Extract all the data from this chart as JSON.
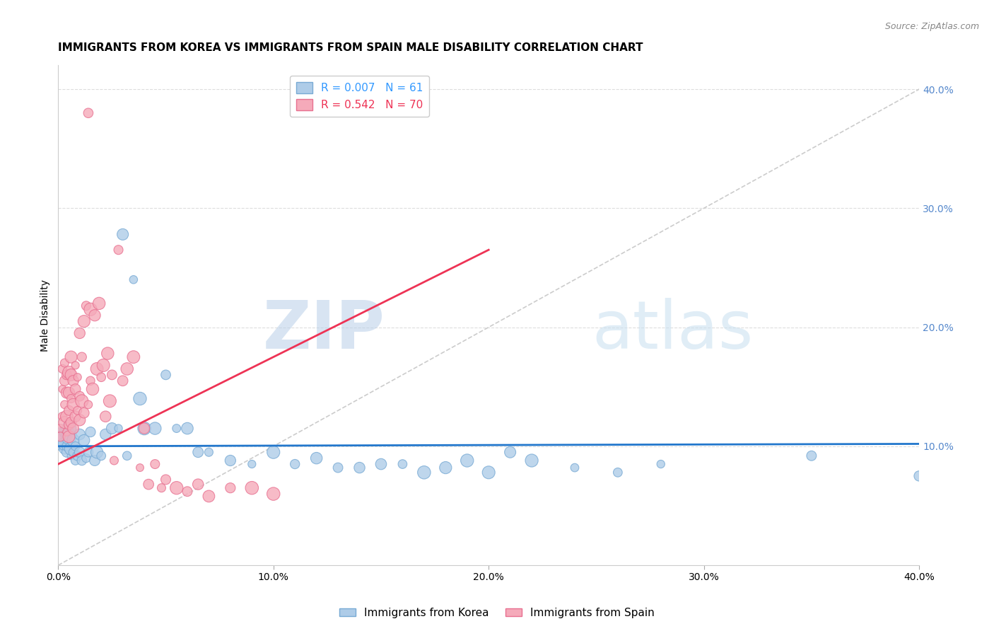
{
  "title": "IMMIGRANTS FROM KOREA VS IMMIGRANTS FROM SPAIN MALE DISABILITY CORRELATION CHART",
  "source": "Source: ZipAtlas.com",
  "ylabel": "Male Disability",
  "xlim": [
    0.0,
    0.4
  ],
  "ylim": [
    0.0,
    0.42
  ],
  "right_yticks": [
    0.1,
    0.2,
    0.3,
    0.4
  ],
  "right_yticklabels": [
    "10.0%",
    "20.0%",
    "30.0%",
    "40.0%"
  ],
  "xticks": [
    0.0,
    0.1,
    0.2,
    0.3,
    0.4
  ],
  "xticklabels": [
    "0.0%",
    "10.0%",
    "20.0%",
    "30.0%",
    "40.0%"
  ],
  "korea_color": "#aecce8",
  "spain_color": "#f5aaba",
  "korea_edge_color": "#78aad4",
  "spain_edge_color": "#e87090",
  "korea_R": 0.007,
  "korea_N": 61,
  "spain_R": 0.542,
  "spain_N": 70,
  "regression_korea_color": "#2277cc",
  "regression_spain_color": "#ee3355",
  "diag_line_color": "#cccccc",
  "grid_color": "#dddddd",
  "watermark_color": "#c8dff0",
  "title_fontsize": 11,
  "axis_label_fontsize": 10,
  "tick_fontsize": 10,
  "legend_fontsize": 11,
  "korea_scatter_x": [
    0.001,
    0.002,
    0.002,
    0.003,
    0.003,
    0.004,
    0.004,
    0.004,
    0.005,
    0.005,
    0.006,
    0.006,
    0.007,
    0.007,
    0.008,
    0.008,
    0.009,
    0.01,
    0.01,
    0.011,
    0.012,
    0.013,
    0.014,
    0.015,
    0.017,
    0.018,
    0.02,
    0.022,
    0.025,
    0.028,
    0.03,
    0.032,
    0.035,
    0.038,
    0.04,
    0.045,
    0.05,
    0.055,
    0.06,
    0.065,
    0.07,
    0.08,
    0.09,
    0.1,
    0.11,
    0.12,
    0.13,
    0.14,
    0.15,
    0.16,
    0.17,
    0.18,
    0.19,
    0.2,
    0.21,
    0.22,
    0.24,
    0.26,
    0.28,
    0.35,
    0.4
  ],
  "korea_scatter_y": [
    0.105,
    0.11,
    0.108,
    0.098,
    0.102,
    0.095,
    0.112,
    0.1,
    0.108,
    0.115,
    0.092,
    0.098,
    0.105,
    0.095,
    0.1,
    0.088,
    0.092,
    0.11,
    0.095,
    0.088,
    0.105,
    0.09,
    0.095,
    0.112,
    0.088,
    0.095,
    0.092,
    0.11,
    0.115,
    0.115,
    0.278,
    0.092,
    0.24,
    0.14,
    0.115,
    0.115,
    0.16,
    0.115,
    0.115,
    0.095,
    0.095,
    0.088,
    0.085,
    0.095,
    0.085,
    0.09,
    0.082,
    0.082,
    0.085,
    0.085,
    0.078,
    0.082,
    0.088,
    0.078,
    0.095,
    0.088,
    0.082,
    0.078,
    0.085,
    0.092,
    0.075
  ],
  "spain_scatter_x": [
    0.001,
    0.001,
    0.002,
    0.002,
    0.002,
    0.003,
    0.003,
    0.003,
    0.003,
    0.004,
    0.004,
    0.004,
    0.004,
    0.005,
    0.005,
    0.005,
    0.005,
    0.005,
    0.006,
    0.006,
    0.006,
    0.006,
    0.007,
    0.007,
    0.007,
    0.008,
    0.008,
    0.008,
    0.009,
    0.009,
    0.01,
    0.01,
    0.01,
    0.011,
    0.011,
    0.012,
    0.012,
    0.013,
    0.014,
    0.014,
    0.015,
    0.015,
    0.016,
    0.017,
    0.018,
    0.019,
    0.02,
    0.021,
    0.022,
    0.023,
    0.024,
    0.025,
    0.026,
    0.028,
    0.03,
    0.032,
    0.035,
    0.038,
    0.04,
    0.042,
    0.045,
    0.048,
    0.05,
    0.055,
    0.06,
    0.065,
    0.07,
    0.08,
    0.09,
    0.1
  ],
  "spain_scatter_y": [
    0.115,
    0.108,
    0.125,
    0.165,
    0.148,
    0.12,
    0.135,
    0.155,
    0.17,
    0.125,
    0.145,
    0.16,
    0.112,
    0.118,
    0.13,
    0.108,
    0.145,
    0.162,
    0.12,
    0.14,
    0.16,
    0.175,
    0.115,
    0.135,
    0.155,
    0.125,
    0.148,
    0.168,
    0.13,
    0.158,
    0.122,
    0.142,
    0.195,
    0.138,
    0.175,
    0.128,
    0.205,
    0.218,
    0.135,
    0.38,
    0.155,
    0.215,
    0.148,
    0.21,
    0.165,
    0.22,
    0.158,
    0.168,
    0.125,
    0.178,
    0.138,
    0.16,
    0.088,
    0.265,
    0.155,
    0.165,
    0.175,
    0.082,
    0.115,
    0.068,
    0.085,
    0.065,
    0.072,
    0.065,
    0.062,
    0.068,
    0.058,
    0.065,
    0.065,
    0.06
  ]
}
